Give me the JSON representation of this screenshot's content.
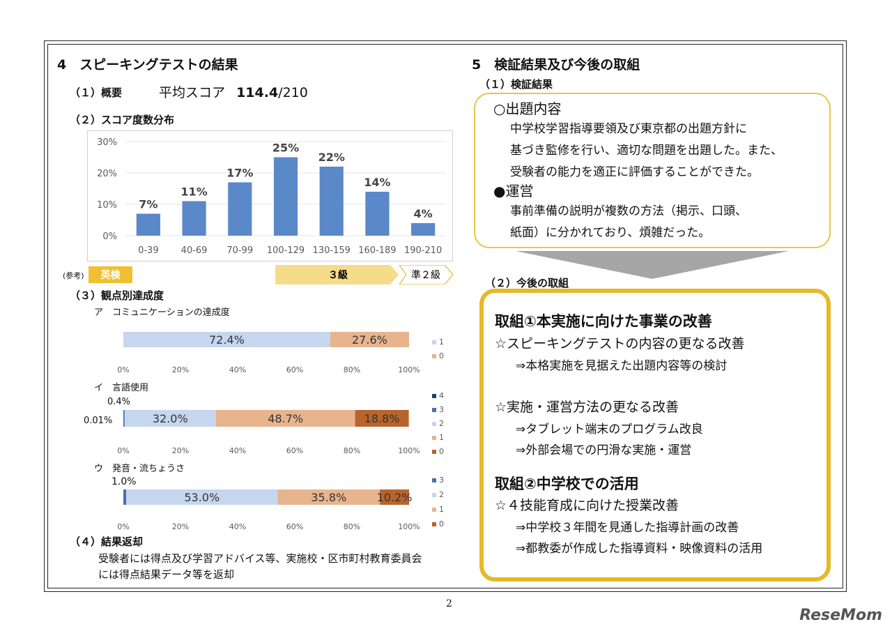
{
  "left": {
    "section_title": "4　スピーキングテストの結果",
    "overview": {
      "label": "（１）概要",
      "score_label": "平均スコア",
      "score_value": "114.4",
      "score_max": "/210"
    },
    "distribution_title": "（２）スコア度数分布",
    "reference": {
      "label": "(参考)",
      "eiken": "英検",
      "grade3": "３級",
      "pre2": "準２級"
    },
    "viewpoint_title": "（３）観点別達成度",
    "sub_a": "ア　コミュニケーションの達成度",
    "sub_b": "イ　言語使用",
    "sub_c": "ウ　発音・流ちょうさ",
    "note_b_top": "0.4%",
    "note_b_left": "0.01%",
    "note_c_top": "1.0%",
    "return_title": "（４）結果返却",
    "return_line1": "受験者には得点及び学習アドバイス等、実施校・区市町村教育委員会",
    "return_line2": "には得点結果データ等を返却"
  },
  "right": {
    "section_title": "5　検証結果及び今後の取組",
    "results_title": "（１）検証結果",
    "item1_head": "○出題内容",
    "item1_l1": "中学校学習指導要領及び東京都の出題方針に",
    "item1_l2": "基づき監修を行い、適切な問題を出題した。また、",
    "item1_l3": "受験者の能力を適正に評価することができた。",
    "item2_head": "●運営",
    "item2_l1": "事前準備の説明が複数の方法（掲示、口頭、",
    "item2_l2": "紙面）に分かれており、煩雑だった。",
    "future_title": "（２）今後の取組",
    "t1": "取組①本実施に向けた事業の改善",
    "t1a": "☆スピーキングテストの内容の更なる改善",
    "t1a1": "⇒本格実施を見据えた出題内容等の検討",
    "t1b": "☆実施・運営方法の更なる改善",
    "t1b1": "⇒タブレット端末のプログラム改良",
    "t1b2": "⇒外部会場での円滑な実施・運営",
    "t2": "取組②中学校での活用",
    "t2a": "☆４技能育成に向けた授業改善",
    "t2a1": "⇒中学校３年間を見通した指導計画の改善",
    "t2a2": "⇒都教委が作成した指導資料・映像資料の活用"
  },
  "page_number": "2",
  "logo_text": "ReseMom",
  "chart_data": [
    {
      "type": "bar",
      "categories": [
        "0-39",
        "40-69",
        "70-99",
        "100-129",
        "130-159",
        "160-189",
        "190-210"
      ],
      "values": [
        7,
        11,
        17,
        25,
        22,
        14,
        4
      ],
      "value_labels": [
        "7%",
        "11%",
        "17%",
        "25%",
        "22%",
        "14%",
        "4%"
      ],
      "yticks": [
        "0%",
        "10%",
        "20%",
        "30%"
      ],
      "ylim": [
        0,
        30
      ],
      "color": "#5b88c8"
    },
    {
      "type": "bar",
      "orientation": "horizontal-stacked",
      "series": [
        {
          "name": "1",
          "value": 72.4,
          "label": "72.4%",
          "color": "#c5d6ee"
        },
        {
          "name": "0",
          "value": 27.6,
          "label": "27.6%",
          "color": "#e7b48e"
        }
      ],
      "legend": [
        "1",
        "0"
      ],
      "xticks": [
        "0%",
        "20%",
        "40%",
        "60%",
        "80%",
        "100%"
      ]
    },
    {
      "type": "bar",
      "orientation": "horizontal-stacked",
      "series": [
        {
          "name": "4",
          "value": 0.01,
          "label": "",
          "color": "#1f3f6e"
        },
        {
          "name": "3",
          "value": 0.4,
          "label": "",
          "color": "#4a6fa8"
        },
        {
          "name": "2",
          "value": 32.0,
          "label": "32.0%",
          "color": "#c5d6ee"
        },
        {
          "name": "1",
          "value": 48.7,
          "label": "48.7%",
          "color": "#e7b48e"
        },
        {
          "name": "0",
          "value": 18.8,
          "label": "18.8%",
          "color": "#b8642c"
        }
      ],
      "legend": [
        "4",
        "3",
        "2",
        "1",
        "0"
      ],
      "xticks": [
        "0%",
        "20%",
        "40%",
        "60%",
        "80%",
        "100%"
      ]
    },
    {
      "type": "bar",
      "orientation": "horizontal-stacked",
      "series": [
        {
          "name": "3",
          "value": 1.0,
          "label": "",
          "color": "#4a6fa8"
        },
        {
          "name": "2",
          "value": 53.0,
          "label": "53.0%",
          "color": "#c5d6ee"
        },
        {
          "name": "1",
          "value": 35.8,
          "label": "35.8%",
          "color": "#e7b48e"
        },
        {
          "name": "0",
          "value": 10.2,
          "label": "10.2%",
          "color": "#b8642c"
        }
      ],
      "legend": [
        "3",
        "2",
        "1",
        "0"
      ],
      "xticks": [
        "0%",
        "20%",
        "40%",
        "60%",
        "80%",
        "100%"
      ]
    }
  ]
}
